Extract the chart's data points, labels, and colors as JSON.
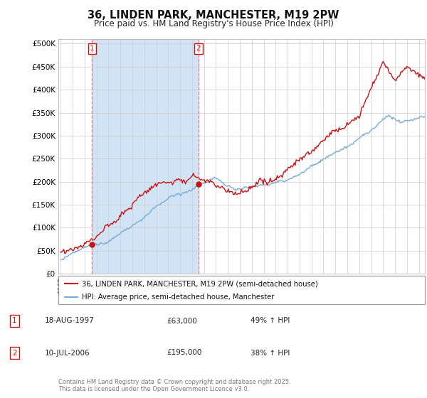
{
  "title": "36, LINDEN PARK, MANCHESTER, M19 2PW",
  "subtitle": "Price paid vs. HM Land Registry's House Price Index (HPI)",
  "ylabel_ticks": [
    "£0",
    "£50K",
    "£100K",
    "£150K",
    "£200K",
    "£250K",
    "£300K",
    "£350K",
    "£400K",
    "£450K",
    "£500K"
  ],
  "ytick_values": [
    0,
    50000,
    100000,
    150000,
    200000,
    250000,
    300000,
    350000,
    400000,
    450000,
    500000
  ],
  "ylim": [
    0,
    510000
  ],
  "xlim_start": 1994.8,
  "xlim_end": 2025.5,
  "hpi_color": "#7aaad4",
  "hpi_fill_color": "#d0e4f5",
  "price_color": "#cc1111",
  "sale1_x": 1997.63,
  "sale1_y": 63000,
  "sale2_x": 2006.53,
  "sale2_y": 195000,
  "legend_line1": "36, LINDEN PARK, MANCHESTER, M19 2PW (semi-detached house)",
  "legend_line2": "HPI: Average price, semi-detached house, Manchester",
  "note1_label": "1",
  "note1_date": "18-AUG-1997",
  "note1_price": "£63,000",
  "note1_hpi": "49% ↑ HPI",
  "note2_label": "2",
  "note2_date": "10-JUL-2006",
  "note2_price": "£195,000",
  "note2_hpi": "38% ↑ HPI",
  "footer": "Contains HM Land Registry data © Crown copyright and database right 2025.\nThis data is licensed under the Open Government Licence v3.0.",
  "background_color": "#ffffff",
  "grid_color": "#cccccc"
}
